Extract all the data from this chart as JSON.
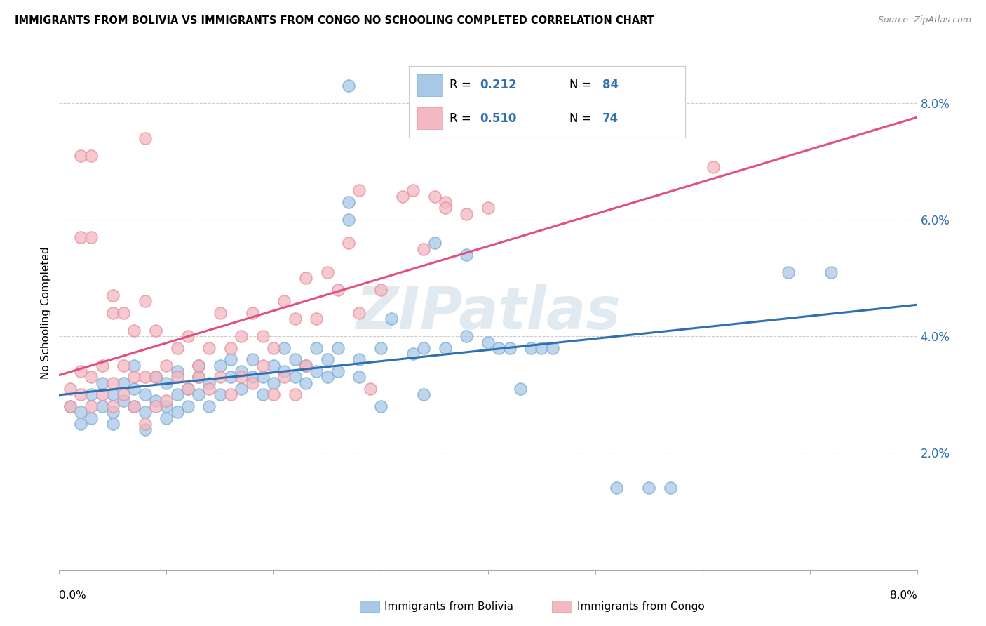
{
  "title": "IMMIGRANTS FROM BOLIVIA VS IMMIGRANTS FROM CONGO NO SCHOOLING COMPLETED CORRELATION CHART",
  "source": "Source: ZipAtlas.com",
  "ylabel": "No Schooling Completed",
  "xlim": [
    0.0,
    0.08
  ],
  "ylim": [
    0.0,
    0.088
  ],
  "bolivia_color": "#a8c8e8",
  "bolivia_edge_color": "#7aafd4",
  "congo_color": "#f4b8c1",
  "congo_edge_color": "#e8909a",
  "bolivia_line_color": "#3070b0",
  "congo_line_color": "#e05080",
  "legend_text_color": "#3070b0",
  "bolivia_R": "0.212",
  "bolivia_N": "84",
  "congo_R": "0.510",
  "congo_N": "74",
  "watermark": "ZIPatlas",
  "ytick_vals": [
    0.02,
    0.04,
    0.06,
    0.08
  ],
  "bolivia_points": [
    [
      0.001,
      0.028
    ],
    [
      0.002,
      0.027
    ],
    [
      0.002,
      0.025
    ],
    [
      0.003,
      0.03
    ],
    [
      0.003,
      0.026
    ],
    [
      0.004,
      0.028
    ],
    [
      0.004,
      0.032
    ],
    [
      0.005,
      0.027
    ],
    [
      0.005,
      0.03
    ],
    [
      0.005,
      0.025
    ],
    [
      0.006,
      0.029
    ],
    [
      0.006,
      0.032
    ],
    [
      0.007,
      0.028
    ],
    [
      0.007,
      0.031
    ],
    [
      0.007,
      0.035
    ],
    [
      0.008,
      0.027
    ],
    [
      0.008,
      0.03
    ],
    [
      0.008,
      0.024
    ],
    [
      0.009,
      0.029
    ],
    [
      0.009,
      0.033
    ],
    [
      0.01,
      0.028
    ],
    [
      0.01,
      0.032
    ],
    [
      0.01,
      0.026
    ],
    [
      0.011,
      0.03
    ],
    [
      0.011,
      0.034
    ],
    [
      0.011,
      0.027
    ],
    [
      0.012,
      0.031
    ],
    [
      0.012,
      0.028
    ],
    [
      0.013,
      0.033
    ],
    [
      0.013,
      0.03
    ],
    [
      0.013,
      0.035
    ],
    [
      0.014,
      0.028
    ],
    [
      0.014,
      0.032
    ],
    [
      0.015,
      0.03
    ],
    [
      0.015,
      0.035
    ],
    [
      0.016,
      0.033
    ],
    [
      0.016,
      0.036
    ],
    [
      0.017,
      0.031
    ],
    [
      0.017,
      0.034
    ],
    [
      0.018,
      0.033
    ],
    [
      0.018,
      0.036
    ],
    [
      0.019,
      0.03
    ],
    [
      0.019,
      0.033
    ],
    [
      0.02,
      0.035
    ],
    [
      0.02,
      0.032
    ],
    [
      0.021,
      0.034
    ],
    [
      0.021,
      0.038
    ],
    [
      0.022,
      0.033
    ],
    [
      0.022,
      0.036
    ],
    [
      0.023,
      0.035
    ],
    [
      0.023,
      0.032
    ],
    [
      0.024,
      0.038
    ],
    [
      0.024,
      0.034
    ],
    [
      0.025,
      0.036
    ],
    [
      0.025,
      0.033
    ],
    [
      0.026,
      0.038
    ],
    [
      0.026,
      0.034
    ],
    [
      0.027,
      0.063
    ],
    [
      0.027,
      0.06
    ],
    [
      0.027,
      0.083
    ],
    [
      0.028,
      0.036
    ],
    [
      0.028,
      0.033
    ],
    [
      0.03,
      0.038
    ],
    [
      0.03,
      0.028
    ],
    [
      0.031,
      0.043
    ],
    [
      0.033,
      0.037
    ],
    [
      0.034,
      0.03
    ],
    [
      0.034,
      0.038
    ],
    [
      0.035,
      0.056
    ],
    [
      0.036,
      0.038
    ],
    [
      0.038,
      0.054
    ],
    [
      0.038,
      0.04
    ],
    [
      0.04,
      0.039
    ],
    [
      0.041,
      0.038
    ],
    [
      0.042,
      0.038
    ],
    [
      0.043,
      0.031
    ],
    [
      0.044,
      0.038
    ],
    [
      0.045,
      0.038
    ],
    [
      0.046,
      0.038
    ],
    [
      0.052,
      0.014
    ],
    [
      0.055,
      0.014
    ],
    [
      0.057,
      0.014
    ],
    [
      0.068,
      0.051
    ],
    [
      0.072,
      0.051
    ]
  ],
  "congo_points": [
    [
      0.001,
      0.031
    ],
    [
      0.001,
      0.028
    ],
    [
      0.002,
      0.034
    ],
    [
      0.002,
      0.03
    ],
    [
      0.002,
      0.057
    ],
    [
      0.003,
      0.028
    ],
    [
      0.003,
      0.033
    ],
    [
      0.003,
      0.057
    ],
    [
      0.004,
      0.03
    ],
    [
      0.004,
      0.035
    ],
    [
      0.005,
      0.032
    ],
    [
      0.005,
      0.028
    ],
    [
      0.005,
      0.044
    ],
    [
      0.005,
      0.047
    ],
    [
      0.006,
      0.03
    ],
    [
      0.006,
      0.035
    ],
    [
      0.006,
      0.044
    ],
    [
      0.007,
      0.028
    ],
    [
      0.007,
      0.033
    ],
    [
      0.007,
      0.041
    ],
    [
      0.008,
      0.025
    ],
    [
      0.008,
      0.033
    ],
    [
      0.008,
      0.046
    ],
    [
      0.008,
      0.074
    ],
    [
      0.009,
      0.028
    ],
    [
      0.009,
      0.033
    ],
    [
      0.009,
      0.041
    ],
    [
      0.01,
      0.029
    ],
    [
      0.01,
      0.035
    ],
    [
      0.011,
      0.033
    ],
    [
      0.011,
      0.038
    ],
    [
      0.012,
      0.031
    ],
    [
      0.012,
      0.04
    ],
    [
      0.013,
      0.033
    ],
    [
      0.013,
      0.035
    ],
    [
      0.014,
      0.031
    ],
    [
      0.014,
      0.038
    ],
    [
      0.015,
      0.033
    ],
    [
      0.015,
      0.044
    ],
    [
      0.016,
      0.03
    ],
    [
      0.016,
      0.038
    ],
    [
      0.017,
      0.033
    ],
    [
      0.017,
      0.04
    ],
    [
      0.018,
      0.032
    ],
    [
      0.018,
      0.044
    ],
    [
      0.019,
      0.035
    ],
    [
      0.019,
      0.04
    ],
    [
      0.02,
      0.03
    ],
    [
      0.02,
      0.038
    ],
    [
      0.021,
      0.033
    ],
    [
      0.021,
      0.046
    ],
    [
      0.022,
      0.03
    ],
    [
      0.022,
      0.043
    ],
    [
      0.023,
      0.035
    ],
    [
      0.023,
      0.05
    ],
    [
      0.024,
      0.043
    ],
    [
      0.025,
      0.051
    ],
    [
      0.026,
      0.048
    ],
    [
      0.027,
      0.056
    ],
    [
      0.028,
      0.065
    ],
    [
      0.028,
      0.044
    ],
    [
      0.029,
      0.031
    ],
    [
      0.03,
      0.048
    ],
    [
      0.032,
      0.064
    ],
    [
      0.033,
      0.065
    ],
    [
      0.034,
      0.055
    ],
    [
      0.035,
      0.064
    ],
    [
      0.036,
      0.063
    ],
    [
      0.036,
      0.062
    ],
    [
      0.038,
      0.061
    ],
    [
      0.04,
      0.062
    ],
    [
      0.061,
      0.069
    ],
    [
      0.002,
      0.071
    ],
    [
      0.003,
      0.071
    ]
  ]
}
